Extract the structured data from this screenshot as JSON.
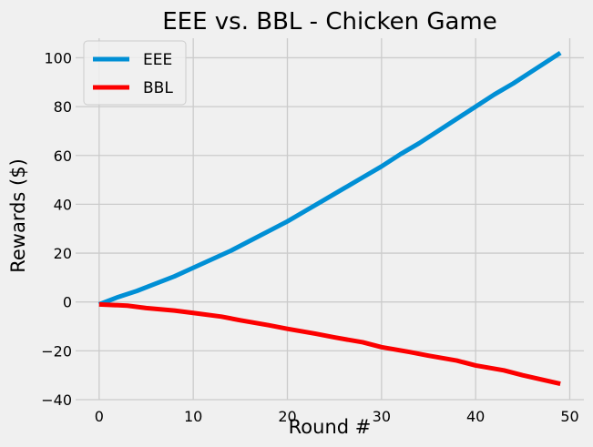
{
  "chart_data": {
    "type": "line",
    "title": "EEE vs. BBL - Chicken Game",
    "xlabel": "Round #",
    "ylabel": "Rewards ($)",
    "xlim": [
      -2.5,
      51.5
    ],
    "ylim": [
      -40,
      108
    ],
    "xticks": [
      0,
      10,
      20,
      30,
      40,
      50
    ],
    "yticks": [
      -40,
      -20,
      0,
      20,
      40,
      60,
      80,
      100
    ],
    "xtick_labels": [
      "0",
      "10",
      "20",
      "30",
      "40",
      "50"
    ],
    "ytick_labels": [
      "−40",
      "−20",
      "0",
      "20",
      "40",
      "60",
      "80",
      "100"
    ],
    "grid": true,
    "legend": "top-left",
    "series": [
      {
        "name": "EEE",
        "color": "#008fd5",
        "x": [
          0,
          2,
          4,
          6,
          8,
          10,
          12,
          14,
          16,
          18,
          20,
          22,
          24,
          26,
          28,
          30,
          32,
          34,
          36,
          38,
          40,
          42,
          44,
          46,
          49
        ],
        "y": [
          -1,
          2,
          4.5,
          7.5,
          10.5,
          14,
          17.5,
          21,
          25,
          29,
          33,
          37.5,
          42,
          46.5,
          51,
          55.5,
          60.5,
          65,
          70,
          75,
          80,
          85,
          89.5,
          94.5,
          102
        ]
      },
      {
        "name": "BBL",
        "color": "#fc0000",
        "x": [
          0,
          3,
          5,
          8,
          10,
          13,
          15,
          18,
          20,
          23,
          25,
          28,
          30,
          33,
          35,
          38,
          40,
          43,
          45,
          49
        ],
        "y": [
          -1,
          -1.5,
          -2.5,
          -3.5,
          -4.5,
          -6,
          -7.5,
          -9.5,
          -11,
          -13,
          -14.5,
          -16.5,
          -18.5,
          -20.5,
          -22,
          -24,
          -26,
          -28,
          -30,
          -33.5
        ]
      }
    ]
  }
}
